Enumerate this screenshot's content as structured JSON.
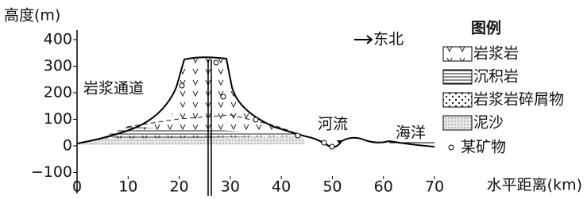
{
  "axes": {
    "y_label": "高度(m)",
    "ylim": [
      -100,
      400
    ],
    "yticks": [
      400,
      300,
      200,
      100,
      0,
      {
        "value": -100,
        "label": "−100"
      }
    ],
    "x_label": "水平距离(km)",
    "xlim": [
      0,
      70
    ],
    "xticks": [
      0,
      10,
      20,
      30,
      40,
      50,
      60,
      70
    ]
  },
  "annotations": {
    "direction": "东北",
    "conduit": "岩浆通道",
    "river": "河流",
    "sea": "海洋"
  },
  "legend": {
    "title": "图例",
    "items": [
      "岩浆岩",
      "沉积岩",
      "岩浆岩碎屑物",
      "泥沙",
      "某矿物"
    ]
  }
}
